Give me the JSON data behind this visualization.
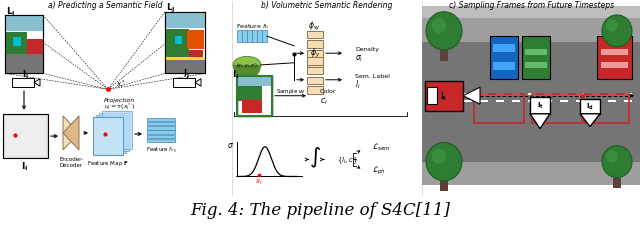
{
  "caption": "Fig. 4: The pipeline of S4C[11]",
  "caption_fontsize": 12,
  "fig_width": 6.4,
  "fig_height": 2.26,
  "background_color": "#ffffff",
  "panel_a_title": "a) Predicting a Semantic Field",
  "panel_b_title": "b) Volumetric Semantic Rendering",
  "panel_c_title": "c) Sampling Frames from Future Timesteps"
}
